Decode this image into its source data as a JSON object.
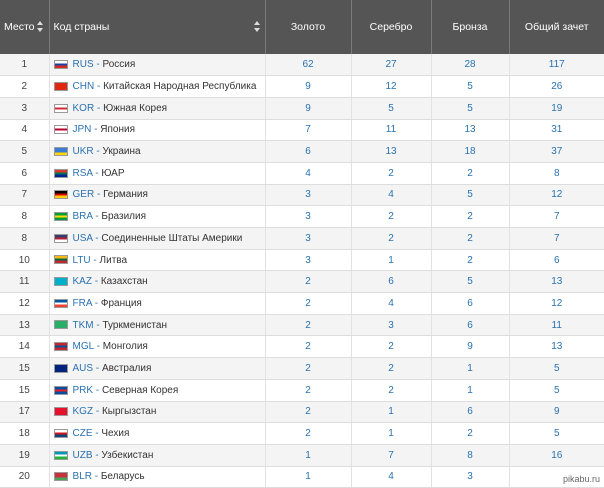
{
  "header": {
    "place": "Место",
    "country": "Код страны",
    "gold": "Золото",
    "silver": "Серебро",
    "bronze": "Бронза",
    "total": "Общий зачет"
  },
  "rows": [
    {
      "place": "1",
      "code": "RUS",
      "name": "Россия",
      "gold": "62",
      "silver": "27",
      "bronze": "28",
      "total": "117",
      "flag": [
        "#ffffff",
        "#1c3fa8",
        "#d52b1e"
      ]
    },
    {
      "place": "2",
      "code": "CHN",
      "name": "Китайская Народная Республика",
      "gold": "9",
      "silver": "12",
      "bronze": "5",
      "total": "26",
      "flag": [
        "#de2910",
        "#de2910",
        "#de2910"
      ]
    },
    {
      "place": "3",
      "code": "KOR",
      "name": "Южная Корея",
      "gold": "9",
      "silver": "5",
      "bronze": "5",
      "total": "19",
      "flag": [
        "#ffffff",
        "#cd2e3a",
        "#ffffff"
      ]
    },
    {
      "place": "4",
      "code": "JPN",
      "name": "Япония",
      "gold": "7",
      "silver": "11",
      "bronze": "13",
      "total": "31",
      "flag": [
        "#ffffff",
        "#bc002d",
        "#ffffff"
      ]
    },
    {
      "place": "5",
      "code": "UKR",
      "name": "Украина",
      "gold": "6",
      "silver": "13",
      "bronze": "18",
      "total": "37",
      "flag": [
        "#3a7dd8",
        "#3a7dd8",
        "#ffd500"
      ]
    },
    {
      "place": "6",
      "code": "RSA",
      "name": "ЮАР",
      "gold": "4",
      "silver": "2",
      "bronze": "2",
      "total": "8",
      "flag": [
        "#de3831",
        "#007a4d",
        "#002395"
      ]
    },
    {
      "place": "7",
      "code": "GER",
      "name": "Германия",
      "gold": "3",
      "silver": "4",
      "bronze": "5",
      "total": "12",
      "flag": [
        "#000000",
        "#dd0000",
        "#ffce00"
      ]
    },
    {
      "place": "8",
      "code": "BRA",
      "name": "Бразилия",
      "gold": "3",
      "silver": "2",
      "bronze": "2",
      "total": "7",
      "flag": [
        "#009b3a",
        "#fedf00",
        "#009b3a"
      ]
    },
    {
      "place": "8",
      "code": "USA",
      "name": "Соединенные Штаты Америки",
      "gold": "3",
      "silver": "2",
      "bronze": "2",
      "total": "7",
      "flag": [
        "#3c3b6e",
        "#b22234",
        "#ffffff"
      ]
    },
    {
      "place": "10",
      "code": "LTU",
      "name": "Литва",
      "gold": "3",
      "silver": "1",
      "bronze": "2",
      "total": "6",
      "flag": [
        "#fdb913",
        "#006a44",
        "#c1272d"
      ]
    },
    {
      "place": "11",
      "code": "KAZ",
      "name": "Казахстан",
      "gold": "2",
      "silver": "6",
      "bronze": "5",
      "total": "13",
      "flag": [
        "#00afca",
        "#00afca",
        "#00afca"
      ]
    },
    {
      "place": "12",
      "code": "FRA",
      "name": "Франция",
      "gold": "2",
      "silver": "4",
      "bronze": "6",
      "total": "12",
      "flag": [
        "#0055a4",
        "#ffffff",
        "#ef4135"
      ]
    },
    {
      "place": "13",
      "code": "TKM",
      "name": "Туркменистан",
      "gold": "2",
      "silver": "3",
      "bronze": "6",
      "total": "11",
      "flag": [
        "#28ae66",
        "#28ae66",
        "#28ae66"
      ]
    },
    {
      "place": "14",
      "code": "MGL",
      "name": "Монголия",
      "gold": "2",
      "silver": "2",
      "bronze": "9",
      "total": "13",
      "flag": [
        "#c4272f",
        "#015197",
        "#c4272f"
      ]
    },
    {
      "place": "15",
      "code": "AUS",
      "name": "Австралия",
      "gold": "2",
      "silver": "2",
      "bronze": "1",
      "total": "5",
      "flag": [
        "#00247d",
        "#00247d",
        "#00247d"
      ]
    },
    {
      "place": "15",
      "code": "PRK",
      "name": "Северная Корея",
      "gold": "2",
      "silver": "2",
      "bronze": "1",
      "total": "5",
      "flag": [
        "#024fa2",
        "#ed1c27",
        "#024fa2"
      ]
    },
    {
      "place": "17",
      "code": "KGZ",
      "name": "Кыргызстан",
      "gold": "2",
      "silver": "1",
      "bronze": "6",
      "total": "9",
      "flag": [
        "#e8112d",
        "#e8112d",
        "#e8112d"
      ]
    },
    {
      "place": "18",
      "code": "CZE",
      "name": "Чехия",
      "gold": "2",
      "silver": "1",
      "bronze": "2",
      "total": "5",
      "flag": [
        "#ffffff",
        "#d7141a",
        "#11457e"
      ]
    },
    {
      "place": "19",
      "code": "UZB",
      "name": "Узбекистан",
      "gold": "1",
      "silver": "7",
      "bronze": "8",
      "total": "16",
      "flag": [
        "#0099b5",
        "#ffffff",
        "#1eb53a"
      ]
    },
    {
      "place": "20",
      "code": "BLR",
      "name": "Беларусь",
      "gold": "1",
      "silver": "4",
      "bronze": "3",
      "total": "",
      "flag": [
        "#c8313e",
        "#c8313e",
        "#4aa657"
      ]
    }
  ],
  "watermark": "pikabu.ru",
  "separator": " - "
}
